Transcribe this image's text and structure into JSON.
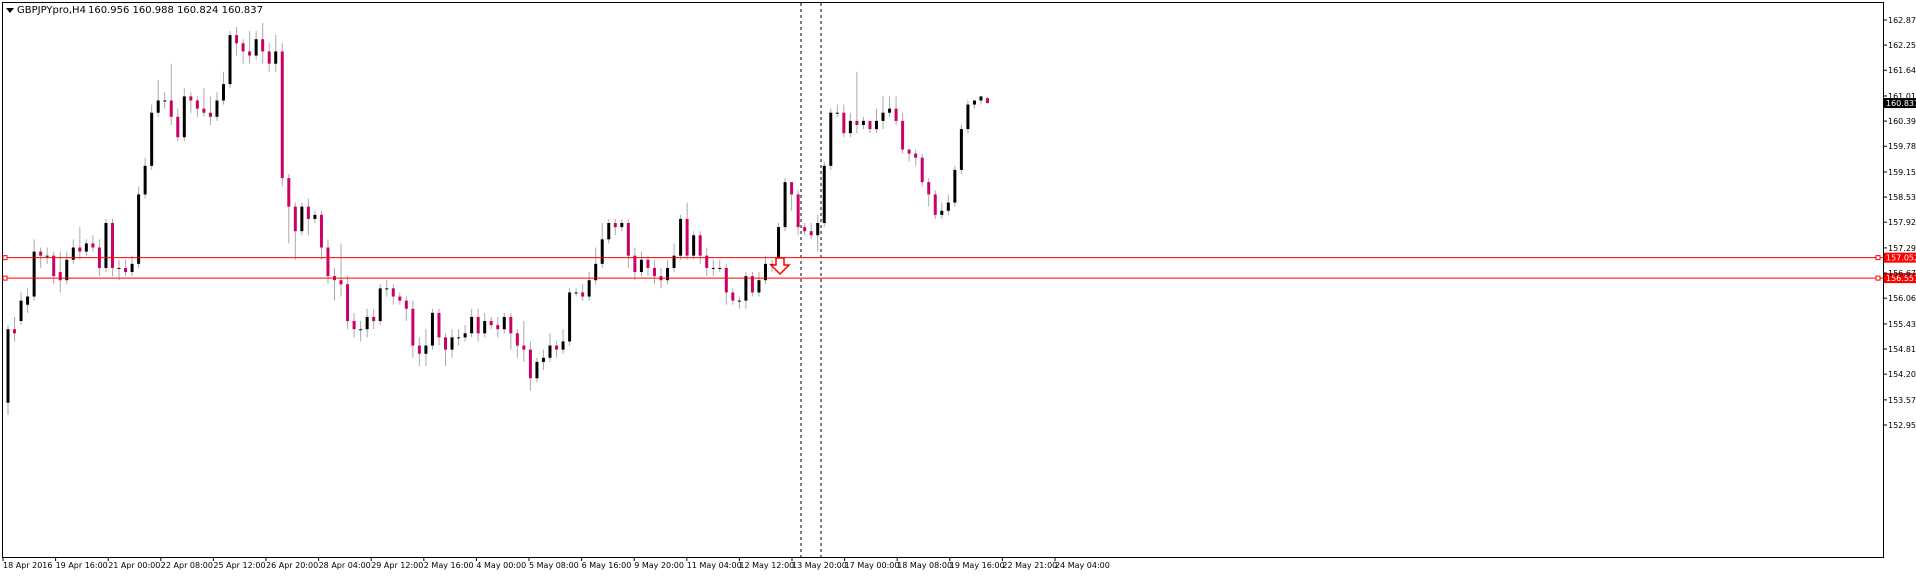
{
  "header": {
    "symbol": "GBPJPYpro,H4",
    "ohlc": "160.956 160.988 160.824 160.837"
  },
  "price_axis": {
    "ticks": [
      "162.870",
      "162.255",
      "161.640",
      "161.010",
      "160.395",
      "159.780",
      "159.150",
      "158.535",
      "157.920",
      "157.290",
      "156.675",
      "156.060",
      "155.430",
      "154.815",
      "154.200",
      "153.570",
      "152.955"
    ]
  },
  "time_axis": {
    "labels": [
      "18 Apr 2016",
      "19 Apr 16:00",
      "21 Apr 00:00",
      "22 Apr 08:00",
      "25 Apr 12:00",
      "26 Apr 20:00",
      "28 Apr 04:00",
      "29 Apr 12:00",
      "2 May 16:00",
      "4 May 00:00",
      "5 May 08:00",
      "6 May 16:00",
      "9 May 20:00",
      "11 May 04:00",
      "12 May 12:00",
      "13 May 20:00",
      "17 May 00:00",
      "18 May 08:00",
      "19 May 16:00",
      "22 May 21:00",
      "24 May 04:00"
    ]
  },
  "levels": [
    {
      "name": "resistance-line",
      "value": 157.052,
      "label": "157.052",
      "color": "#ff0000"
    },
    {
      "name": "support-line",
      "value": 156.551,
      "label": "156.551",
      "color": "#ff0000"
    }
  ],
  "current_price": {
    "value": 160.837,
    "label": "160.837",
    "color": "#000000"
  },
  "colors": {
    "bull": "#000000",
    "bear": "#cc0066",
    "wick": "#aaaaaa",
    "grid": "#c8c8c8",
    "level": "#ff0000",
    "background": "#ffffff"
  },
  "arrow": {
    "type": "down-arrow",
    "color": "#ff0000"
  },
  "chart_data": {
    "type": "candlestick",
    "symbol": "GBPJPYpro",
    "timeframe": "H4",
    "ylim": [
      152.95,
      163.25
    ],
    "candles": [
      [
        153.5,
        155.3,
        153.2,
        155.4
      ],
      [
        155.3,
        155.2,
        155.0,
        155.6
      ],
      [
        155.5,
        156.0,
        155.4,
        156.2
      ],
      [
        155.9,
        156.1,
        155.7,
        156.3
      ],
      [
        156.1,
        157.2,
        156.0,
        157.5
      ],
      [
        157.2,
        157.1,
        156.8,
        157.3
      ],
      [
        157.1,
        157.1,
        156.9,
        157.3
      ],
      [
        157.1,
        156.6,
        156.4,
        157.2
      ],
      [
        156.7,
        156.5,
        156.2,
        157.2
      ],
      [
        156.5,
        157.0,
        156.4,
        157.2
      ],
      [
        157.0,
        157.3,
        156.9,
        157.5
      ],
      [
        157.3,
        157.2,
        157.0,
        157.8
      ],
      [
        157.2,
        157.4,
        157.1,
        157.5
      ],
      [
        157.4,
        157.3,
        157.2,
        157.6
      ],
      [
        157.3,
        156.8,
        156.6,
        157.5
      ],
      [
        156.8,
        157.9,
        156.7,
        158.0
      ],
      [
        157.9,
        156.8,
        156.6,
        158.0
      ],
      [
        156.8,
        156.8,
        156.5,
        157.0
      ],
      [
        156.8,
        156.7,
        156.6,
        157.0
      ],
      [
        156.7,
        156.9,
        156.6,
        157.1
      ],
      [
        156.9,
        158.6,
        156.8,
        158.8
      ],
      [
        158.6,
        159.3,
        158.5,
        159.5
      ],
      [
        159.3,
        160.6,
        159.2,
        160.8
      ],
      [
        160.6,
        160.9,
        160.5,
        161.4
      ],
      [
        160.9,
        160.9,
        160.7,
        161.1
      ],
      [
        160.9,
        160.5,
        160.3,
        161.8
      ],
      [
        160.5,
        160.0,
        159.9,
        160.7
      ],
      [
        160.0,
        161.0,
        159.9,
        161.2
      ],
      [
        161.0,
        160.9,
        160.6,
        161.1
      ],
      [
        160.9,
        160.7,
        160.5,
        161.0
      ],
      [
        160.7,
        160.6,
        160.5,
        161.2
      ],
      [
        160.6,
        160.5,
        160.3,
        161.0
      ],
      [
        160.5,
        160.9,
        160.4,
        161.1
      ],
      [
        160.9,
        161.3,
        160.8,
        161.6
      ],
      [
        161.3,
        162.5,
        161.2,
        162.6
      ],
      [
        162.5,
        162.3,
        162.0,
        162.7
      ],
      [
        162.3,
        162.1,
        161.8,
        162.4
      ],
      [
        162.1,
        162.0,
        161.8,
        162.6
      ],
      [
        162.0,
        162.4,
        161.9,
        162.6
      ],
      [
        162.4,
        162.1,
        161.8,
        162.8
      ],
      [
        162.1,
        161.8,
        161.6,
        162.3
      ],
      [
        161.8,
        162.1,
        161.6,
        162.5
      ],
      [
        162.1,
        159.0,
        158.8,
        162.3
      ],
      [
        159.0,
        158.3,
        157.4,
        159.1
      ],
      [
        158.3,
        157.7,
        157.0,
        158.4
      ],
      [
        157.7,
        158.3,
        157.6,
        158.4
      ],
      [
        158.3,
        158.0,
        157.6,
        158.5
      ],
      [
        158.0,
        158.1,
        157.9,
        158.2
      ],
      [
        158.1,
        157.3,
        157.0,
        158.2
      ],
      [
        157.3,
        156.6,
        156.4,
        157.5
      ],
      [
        156.6,
        156.5,
        156.0,
        156.8
      ],
      [
        156.5,
        156.4,
        156.1,
        157.4
      ],
      [
        156.4,
        155.5,
        155.3,
        156.6
      ],
      [
        155.5,
        155.3,
        155.1,
        155.7
      ],
      [
        155.3,
        155.3,
        155.0,
        155.5
      ],
      [
        155.3,
        155.6,
        155.1,
        155.8
      ],
      [
        155.6,
        155.5,
        155.3,
        155.8
      ],
      [
        155.5,
        156.3,
        155.4,
        156.4
      ],
      [
        156.3,
        156.3,
        156.1,
        156.5
      ],
      [
        156.3,
        156.1,
        155.9,
        156.4
      ],
      [
        156.1,
        156.0,
        155.9,
        156.2
      ],
      [
        156.0,
        155.8,
        155.5,
        156.1
      ],
      [
        155.8,
        154.9,
        154.6,
        156.0
      ],
      [
        154.9,
        154.7,
        154.4,
        155.1
      ],
      [
        154.7,
        154.9,
        154.4,
        155.3
      ],
      [
        154.9,
        155.7,
        154.8,
        155.8
      ],
      [
        155.7,
        155.1,
        154.9,
        155.8
      ],
      [
        155.1,
        154.8,
        154.4,
        155.2
      ],
      [
        154.8,
        155.1,
        154.6,
        155.3
      ],
      [
        155.1,
        155.1,
        154.9,
        155.3
      ],
      [
        155.1,
        155.2,
        155.0,
        155.4
      ],
      [
        155.2,
        155.6,
        155.1,
        155.8
      ],
      [
        155.6,
        155.2,
        155.0,
        155.8
      ],
      [
        155.2,
        155.5,
        155.1,
        155.7
      ],
      [
        155.5,
        155.4,
        155.3,
        155.6
      ],
      [
        155.4,
        155.3,
        155.1,
        155.6
      ],
      [
        155.3,
        155.6,
        155.2,
        155.7
      ],
      [
        155.6,
        155.2,
        154.8,
        155.7
      ],
      [
        155.2,
        154.9,
        154.6,
        155.3
      ],
      [
        154.9,
        154.8,
        154.5,
        155.5
      ],
      [
        154.8,
        154.1,
        153.8,
        155.0
      ],
      [
        154.1,
        154.5,
        154.0,
        154.6
      ],
      [
        154.5,
        154.6,
        154.3,
        154.8
      ],
      [
        154.6,
        154.9,
        154.5,
        155.2
      ],
      [
        154.9,
        154.8,
        154.6,
        155.0
      ],
      [
        154.8,
        155.0,
        154.7,
        155.3
      ],
      [
        155.0,
        156.2,
        154.9,
        156.3
      ],
      [
        156.2,
        156.2,
        156.1,
        156.3
      ],
      [
        156.2,
        156.1,
        156.0,
        156.4
      ],
      [
        156.1,
        156.5,
        156.0,
        156.7
      ],
      [
        156.5,
        156.9,
        156.4,
        157.3
      ],
      [
        156.9,
        157.5,
        156.8,
        157.9
      ],
      [
        157.5,
        157.9,
        157.4,
        158.0
      ],
      [
        157.9,
        157.8,
        157.6,
        158.0
      ],
      [
        157.8,
        157.9,
        157.7,
        158.0
      ],
      [
        157.9,
        157.1,
        156.8,
        158.0
      ],
      [
        157.1,
        156.7,
        156.5,
        157.3
      ],
      [
        156.7,
        157.0,
        156.6,
        157.2
      ],
      [
        157.0,
        156.8,
        156.6,
        157.1
      ],
      [
        156.8,
        156.6,
        156.4,
        157.0
      ],
      [
        156.6,
        156.5,
        156.3,
        156.8
      ],
      [
        156.5,
        156.8,
        156.4,
        157.0
      ],
      [
        156.8,
        157.1,
        156.7,
        157.4
      ],
      [
        157.1,
        158.0,
        157.0,
        158.1
      ],
      [
        158.0,
        157.1,
        157.0,
        158.4
      ],
      [
        157.1,
        157.6,
        157.0,
        157.7
      ],
      [
        157.6,
        157.1,
        156.9,
        157.7
      ],
      [
        157.1,
        156.8,
        156.6,
        157.3
      ],
      [
        156.8,
        156.8,
        156.6,
        157.0
      ],
      [
        156.8,
        156.8,
        156.7,
        157.0
      ],
      [
        156.8,
        156.2,
        155.9,
        156.9
      ],
      [
        156.2,
        156.0,
        155.9,
        156.3
      ],
      [
        156.0,
        156.0,
        155.8,
        156.1
      ],
      [
        156.0,
        156.6,
        155.8,
        156.7
      ],
      [
        156.6,
        156.2,
        156.1,
        156.7
      ],
      [
        156.2,
        156.5,
        156.1,
        156.7
      ],
      [
        156.5,
        156.9,
        156.4,
        157.1
      ],
      [
        156.9,
        156.9,
        156.7,
        157.0
      ],
      [
        156.9,
        157.8,
        156.8,
        157.9
      ],
      [
        157.8,
        158.9,
        157.7,
        159.0
      ],
      [
        158.9,
        158.6,
        158.2,
        158.9
      ],
      [
        158.6,
        157.8,
        157.6,
        158.7
      ],
      [
        157.8,
        157.7,
        157.6,
        157.9
      ],
      [
        157.7,
        157.6,
        157.5,
        157.9
      ],
      [
        157.6,
        157.9,
        157.2,
        158.1
      ],
      [
        157.9,
        159.3,
        157.8,
        159.4
      ],
      [
        159.3,
        160.6,
        159.2,
        160.7
      ],
      [
        160.6,
        160.6,
        160.5,
        160.8
      ],
      [
        160.6,
        160.1,
        160.0,
        160.8
      ],
      [
        160.1,
        160.4,
        160.0,
        160.6
      ],
      [
        160.4,
        160.3,
        160.1,
        161.6
      ],
      [
        160.3,
        160.4,
        160.2,
        160.5
      ],
      [
        160.4,
        160.2,
        160.1,
        160.4
      ],
      [
        160.2,
        160.4,
        160.1,
        160.7
      ],
      [
        160.4,
        160.6,
        160.2,
        161.0
      ],
      [
        160.6,
        160.7,
        160.5,
        161.0
      ],
      [
        160.7,
        160.4,
        160.3,
        161.0
      ],
      [
        160.4,
        159.7,
        159.6,
        160.6
      ],
      [
        159.7,
        159.6,
        159.4,
        159.7
      ],
      [
        159.6,
        159.5,
        159.3,
        159.7
      ],
      [
        159.5,
        158.9,
        158.8,
        159.6
      ],
      [
        158.9,
        158.6,
        158.3,
        159.0
      ],
      [
        158.6,
        158.1,
        158.0,
        158.7
      ],
      [
        158.1,
        158.2,
        158.0,
        158.4
      ],
      [
        158.2,
        158.4,
        158.1,
        158.6
      ],
      [
        158.4,
        159.2,
        158.3,
        159.3
      ],
      [
        159.2,
        160.2,
        159.1,
        160.3
      ],
      [
        160.2,
        160.8,
        160.1,
        160.9
      ],
      [
        160.8,
        160.9,
        160.7,
        160.9
      ],
      [
        160.9,
        161.0,
        160.8,
        161.0
      ],
      [
        160.956,
        160.837,
        160.824,
        160.988
      ]
    ],
    "vertical_markers": [
      "13 May 20:00",
      "13 May 20:00"
    ]
  }
}
